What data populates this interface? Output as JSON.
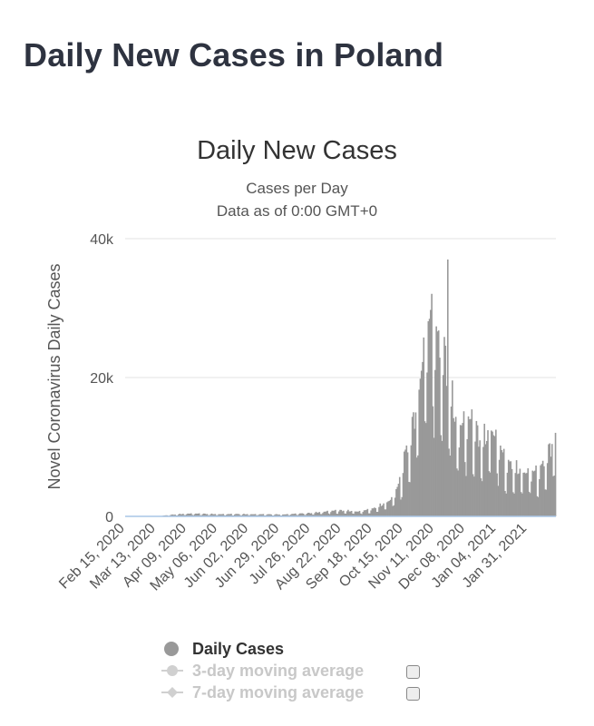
{
  "page": {
    "title": "Daily New Cases in Poland"
  },
  "chart_data": {
    "type": "bar",
    "title": "Daily New Cases",
    "subtitle": "Cases per Day",
    "subtitle2": "Data as of 0:00 GMT+0",
    "ylabel": "Novel Coronavirus Daily Cases",
    "xlabel": "",
    "ylim": [
      0,
      40000
    ],
    "y_ticks": [
      {
        "value": 0,
        "label": "0"
      },
      {
        "value": 20000,
        "label": "20k"
      },
      {
        "value": 40000,
        "label": "40k"
      }
    ],
    "x_ticks": [
      "Feb 15, 2020",
      "Mar 13, 2020",
      "Apr 09, 2020",
      "May 06, 2020",
      "Jun 02, 2020",
      "Jun 29, 2020",
      "Jul 26, 2020",
      "Aug 22, 2020",
      "Sep 18, 2020",
      "Oct 15, 2020",
      "Nov 11, 2020",
      "Dec 08, 2020",
      "Jan 04, 2021",
      "Jan 31, 2021"
    ],
    "grid": true,
    "bar_color": "#999999",
    "series": [
      {
        "name": "Daily Cases",
        "start_date": "2020-02-15",
        "end_date": "2021-02-24",
        "keypoints": [
          [
            "2020-02-15",
            0
          ],
          [
            "2020-03-04",
            0
          ],
          [
            "2020-03-15",
            40
          ],
          [
            "2020-03-25",
            200
          ],
          [
            "2020-04-09",
            380
          ],
          [
            "2020-05-06",
            300
          ],
          [
            "2020-06-02",
            300
          ],
          [
            "2020-06-29",
            250
          ],
          [
            "2020-07-26",
            450
          ],
          [
            "2020-08-10",
            700
          ],
          [
            "2020-08-22",
            800
          ],
          [
            "2020-09-05",
            650
          ],
          [
            "2020-09-18",
            1000
          ],
          [
            "2020-09-28",
            1800
          ],
          [
            "2020-10-05",
            2500
          ],
          [
            "2020-10-12",
            5000
          ],
          [
            "2020-10-15",
            8000
          ],
          [
            "2020-10-20",
            10000
          ],
          [
            "2020-10-25",
            14000
          ],
          [
            "2020-10-30",
            21000
          ],
          [
            "2020-11-05",
            26000
          ],
          [
            "2020-11-07",
            27500
          ],
          [
            "2020-11-11",
            24000
          ],
          [
            "2020-11-16",
            23000
          ],
          [
            "2020-11-21",
            20000
          ],
          [
            "2020-11-25",
            16000
          ],
          [
            "2020-11-30",
            12000
          ],
          [
            "2020-12-08",
            13000
          ],
          [
            "2020-12-15",
            12000
          ],
          [
            "2020-12-22",
            10000
          ],
          [
            "2020-12-30",
            12000
          ],
          [
            "2021-01-05",
            10000
          ],
          [
            "2021-01-12",
            7000
          ],
          [
            "2021-01-20",
            6500
          ],
          [
            "2021-01-31",
            6000
          ],
          [
            "2021-02-10",
            6000
          ],
          [
            "2021-02-20",
            9000
          ],
          [
            "2021-02-24",
            12000
          ]
        ],
        "spikes": [
          [
            "2020-11-22",
            37000
          ]
        ]
      }
    ]
  },
  "legend": {
    "items": [
      {
        "label": "Daily Cases",
        "active": true,
        "color": "#999999",
        "marker": "circle"
      },
      {
        "label": "3-day moving average",
        "active": false,
        "marker": "circle-line"
      },
      {
        "label": "7-day moving average",
        "active": false,
        "marker": "diamond-line"
      }
    ]
  }
}
